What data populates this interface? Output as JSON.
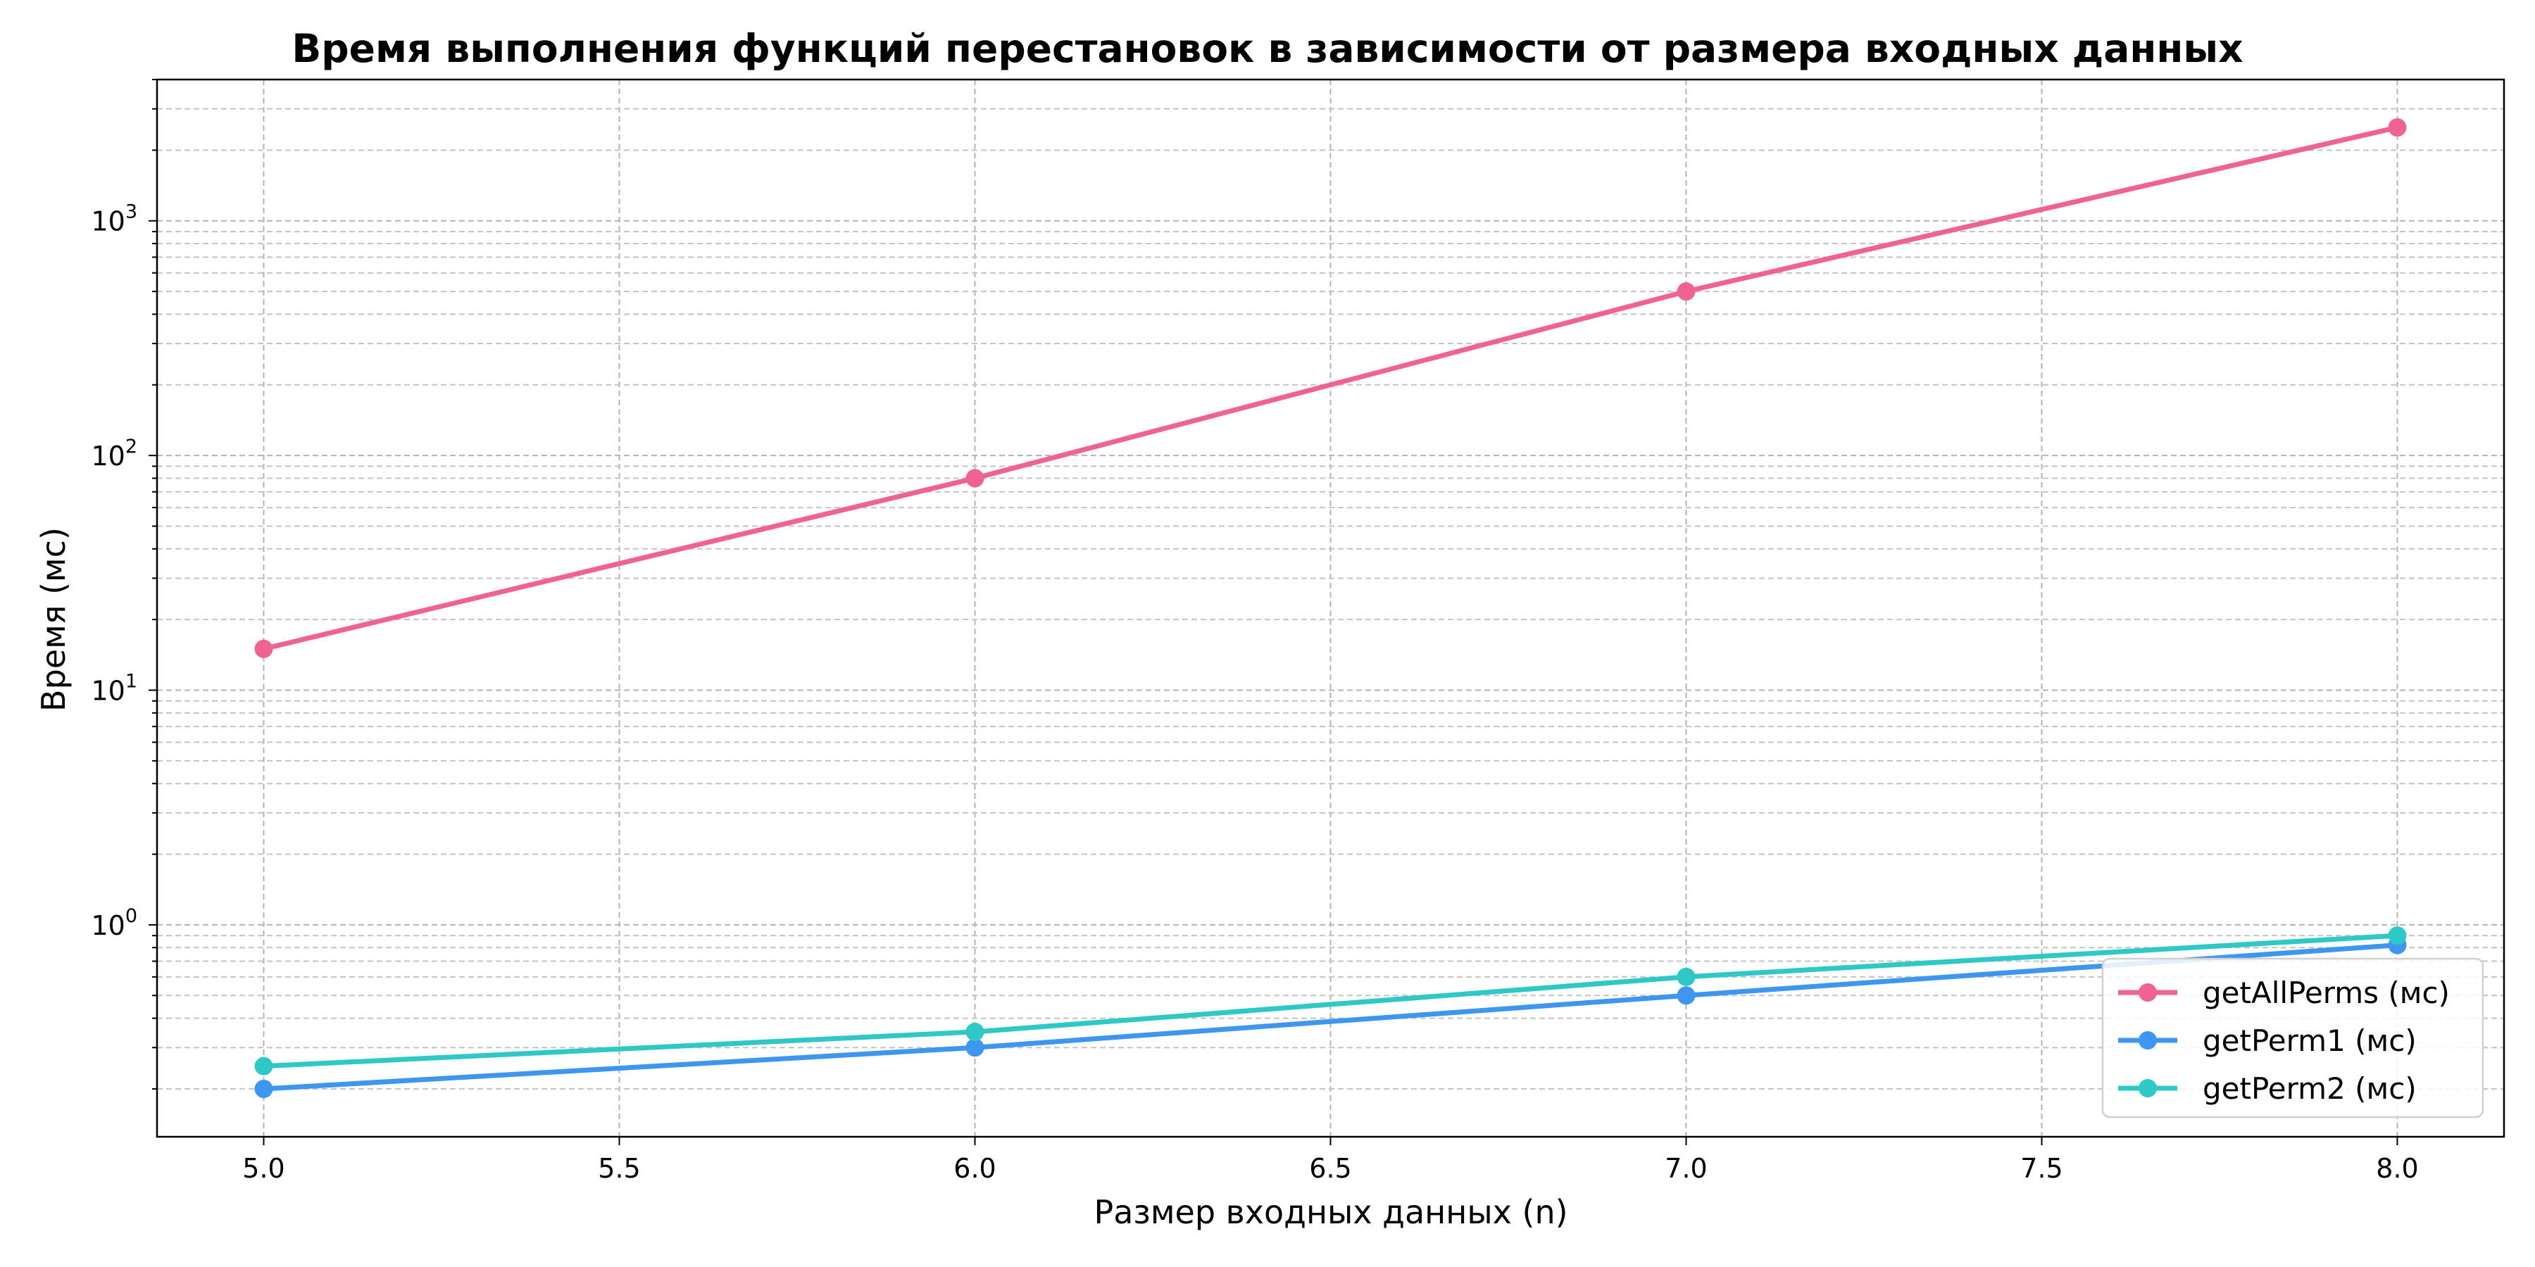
{
  "chart_data": {
    "type": "line",
    "title": "Время выполнения функций перестановок в зависимости от размера входных данных",
    "xlabel": "Размер входных данных (n)",
    "ylabel": "Время (мс)",
    "xlim": [
      4.85,
      8.15
    ],
    "ylim": [
      0.125,
      4000
    ],
    "yscale": "log",
    "x_ticks": [
      "5.0",
      "5.5",
      "6.0",
      "6.5",
      "7.0",
      "7.5",
      "8.0"
    ],
    "y_ticks": [
      {
        "base": "10",
        "exp": "0",
        "value": 1
      },
      {
        "base": "10",
        "exp": "1",
        "value": 10
      },
      {
        "base": "10",
        "exp": "2",
        "value": 100
      },
      {
        "base": "10",
        "exp": "3",
        "value": 1000
      }
    ],
    "grid": true,
    "grid_minor": true,
    "legend_position": "lower-right",
    "x": [
      5,
      6,
      7,
      8
    ],
    "series": [
      {
        "name": "getAllPerms (мс)",
        "color": "#f06292",
        "values": [
          15,
          80,
          500,
          2500
        ]
      },
      {
        "name": "getPerm1 (мс)",
        "color": "#3d96f0",
        "values": [
          0.2,
          0.3,
          0.5,
          0.82
        ]
      },
      {
        "name": "getPerm2 (мс)",
        "color": "#2ec8c6",
        "values": [
          0.25,
          0.35,
          0.6,
          0.9
        ]
      }
    ]
  }
}
